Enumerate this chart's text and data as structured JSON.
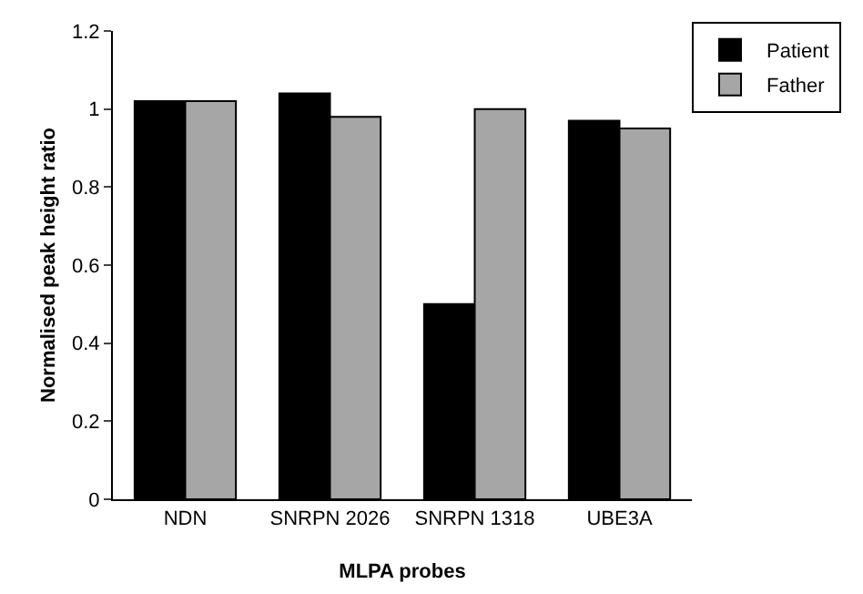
{
  "chart_data": {
    "type": "bar",
    "xlabel": "MLPA probes",
    "ylabel": "Normalised peak height ratio",
    "categories": [
      "NDN",
      "SNRPN 2026",
      "SNRPN 1318",
      "UBE3A"
    ],
    "series": [
      {
        "name": "Patient",
        "color": "#000000",
        "values": [
          1.02,
          1.04,
          0.5,
          0.97
        ]
      },
      {
        "name": "Father",
        "color": "#a6a6a6",
        "values": [
          1.02,
          0.98,
          1.0,
          0.95
        ]
      }
    ],
    "ylim": [
      0,
      1.2
    ],
    "yticks": [
      0,
      0.2,
      0.4,
      0.6,
      0.8,
      1,
      1.2
    ],
    "grid": false,
    "legend": "top right"
  }
}
